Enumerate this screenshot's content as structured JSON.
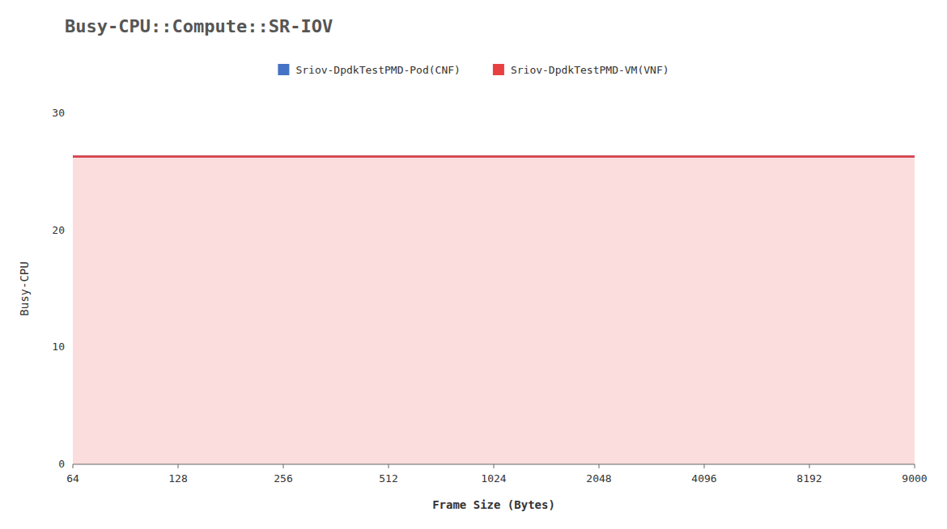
{
  "chart_data": {
    "type": "line",
    "title": "Busy-CPU::Compute::SR-IOV",
    "x_label": "Frame Size (Bytes)",
    "y_label": "Busy-CPU",
    "categories": [
      64,
      128,
      256,
      512,
      1024,
      2048,
      4096,
      8192,
      9000
    ],
    "series": [
      {
        "name": "Sriov-DpdkTestPMD-Pod(CNF)",
        "color": "#4472c4",
        "type": "line",
        "values": [
          26.3,
          26.3,
          26.3,
          26.3,
          26.3,
          26.3,
          26.3,
          26.3,
          26.3
        ]
      },
      {
        "name": "Sriov-DpdkTestPMD-VM(VNF)",
        "color": "#e84040",
        "type": "area",
        "values": [
          26.3,
          26.3,
          26.3,
          26.3,
          26.3,
          26.3,
          26.3,
          26.3,
          26.3
        ]
      }
    ],
    "ylim": [
      0,
      30
    ],
    "yticks": [
      0,
      10,
      20,
      30
    ],
    "grid": false,
    "legend": "top"
  }
}
